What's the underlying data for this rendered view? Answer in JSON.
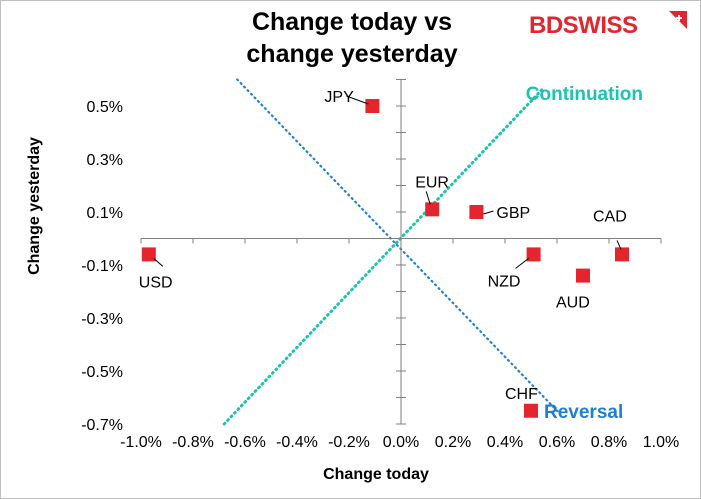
{
  "brand": {
    "text_bd": "BD",
    "text_swiss": "SWISS",
    "color": "#e3262d",
    "icon": "swiss-cross-flag-icon"
  },
  "chart_data": {
    "type": "scatter",
    "title_lines": [
      "Change today vs",
      "change yesterday"
    ],
    "xlabel": "Change today",
    "ylabel": "Change yesterday",
    "xlim": [
      -1.0,
      1.0
    ],
    "ylim": [
      -0.7,
      0.6
    ],
    "x_ticks": [
      "-1.0%",
      "-0.8%",
      "-0.6%",
      "-0.4%",
      "-0.2%",
      "0.0%",
      "0.2%",
      "0.4%",
      "0.6%",
      "0.8%",
      "1.0%"
    ],
    "x_tick_values": [
      -1.0,
      -0.8,
      -0.6,
      -0.4,
      -0.2,
      0.0,
      0.2,
      0.4,
      0.6,
      0.8,
      1.0
    ],
    "y_ticks": [
      "0.5%",
      "0.3%",
      "0.1%",
      "-0.1%",
      "-0.3%",
      "-0.5%",
      "-0.7%"
    ],
    "y_tick_values": [
      0.5,
      0.3,
      0.1,
      -0.1,
      -0.3,
      -0.5,
      -0.7
    ],
    "grid": false,
    "marker_color": "#e3262d",
    "points": [
      {
        "label": "JPY",
        "x": -0.11,
        "y": 0.5
      },
      {
        "label": "EUR",
        "x": 0.12,
        "y": 0.11
      },
      {
        "label": "GBP",
        "x": 0.29,
        "y": 0.1
      },
      {
        "label": "USD",
        "x": -0.97,
        "y": -0.06
      },
      {
        "label": "NZD",
        "x": 0.51,
        "y": -0.06
      },
      {
        "label": "CAD",
        "x": 0.85,
        "y": -0.06
      },
      {
        "label": "AUD",
        "x": 0.7,
        "y": -0.14
      },
      {
        "label": "CHF",
        "x": 0.5,
        "y": -0.65
      }
    ],
    "reference_lines": [
      {
        "name": "Continuation",
        "color": "#1fc2b0",
        "from": [
          -0.68,
          -0.7
        ],
        "to": [
          0.55,
          0.57
        ]
      },
      {
        "name": "Reversal",
        "color": "#1f7fd6",
        "from": [
          -0.63,
          0.6
        ],
        "to": [
          0.61,
          -0.66
        ]
      }
    ],
    "annotations": [
      {
        "text": "Continuation",
        "color": "#1fc2b0",
        "x": 0.48,
        "y": 0.55
      },
      {
        "text": "Reversal",
        "color": "#1f7fd6",
        "x": 0.55,
        "y": -0.65
      }
    ]
  }
}
